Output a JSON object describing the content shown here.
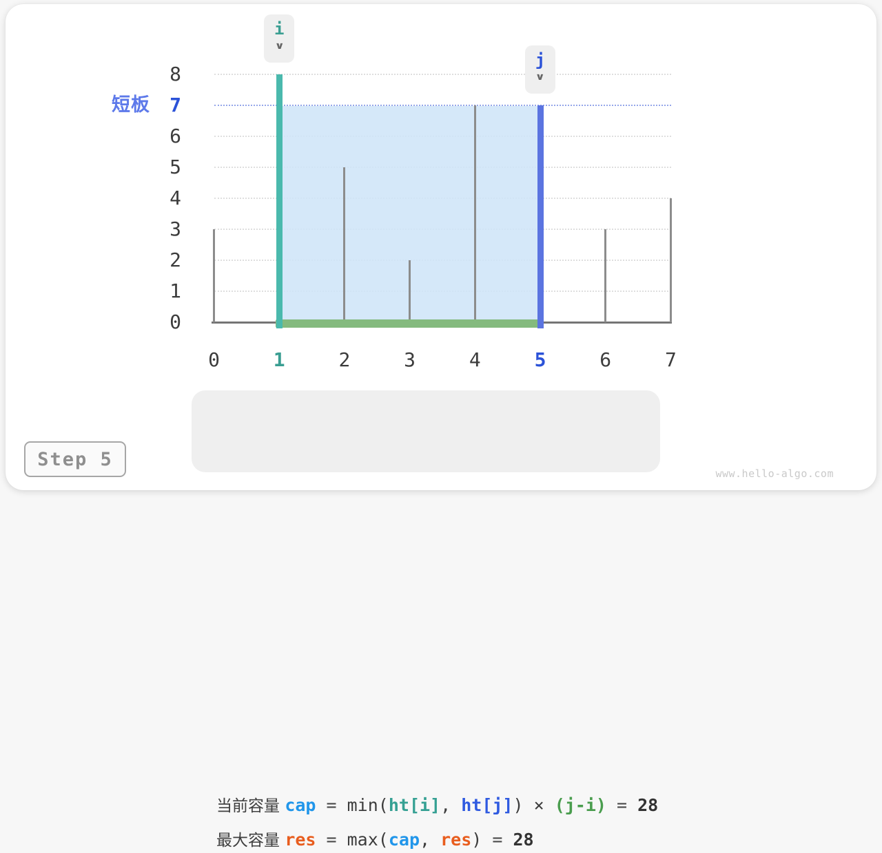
{
  "page": {
    "step_label": "Step 5",
    "watermark": "www.hello-algo.com"
  },
  "chart_data": {
    "type": "bar",
    "title": "",
    "xlabel": "",
    "ylabel": "",
    "categories": [
      0,
      1,
      2,
      3,
      4,
      5,
      6,
      7
    ],
    "values": [
      3,
      8,
      5,
      2,
      7,
      7,
      3,
      4
    ],
    "ylim": [
      0,
      8
    ],
    "y_ticks": [
      0,
      1,
      2,
      3,
      4,
      5,
      6,
      7,
      8
    ],
    "grid": true,
    "legend_position": "none",
    "pointers": {
      "i": {
        "index": 1,
        "label": "i",
        "arrow": "∨"
      },
      "j": {
        "index": 5,
        "label": "j",
        "arrow": "∨"
      }
    },
    "short_board": {
      "label": "短板",
      "value": 7
    },
    "highlight": {
      "fill_between": [
        1,
        5
      ],
      "water_level": 7
    }
  },
  "formula_panel": {
    "lines": [
      {
        "name": "current-capacity-formula",
        "tokens": [
          {
            "text": "当前容量 ",
            "role": "zh"
          },
          {
            "text": "cap",
            "role": "cap"
          },
          {
            "text": " = ",
            "role": "eq"
          },
          {
            "text": "min(",
            "role": "fn"
          },
          {
            "text": "ht[i]",
            "role": "hti"
          },
          {
            "text": ", ",
            "role": "fn"
          },
          {
            "text": "ht[j]",
            "role": "htj"
          },
          {
            "text": ") × ",
            "role": "fn"
          },
          {
            "text": "(j-i)",
            "role": "jmi"
          },
          {
            "text": " = ",
            "role": "eq"
          },
          {
            "text": "28",
            "role": "num"
          }
        ]
      },
      {
        "name": "max-capacity-formula",
        "tokens": [
          {
            "text": "最大容量 ",
            "role": "zh"
          },
          {
            "text": "res",
            "role": "res"
          },
          {
            "text": " = ",
            "role": "eq"
          },
          {
            "text": "max(",
            "role": "fn"
          },
          {
            "text": "cap",
            "role": "cap"
          },
          {
            "text": ", ",
            "role": "fn"
          },
          {
            "text": "res",
            "role": "res"
          },
          {
            "text": ") ",
            "role": "fn"
          },
          {
            "text": "= ",
            "role": "eq"
          },
          {
            "text": "28",
            "role": "num"
          }
        ]
      }
    ]
  },
  "colors": {
    "teal_bar": "#4ab9ad",
    "teal_text": "#3a9e92",
    "blue_bar": "#5b74e0",
    "blue_text": "#2b52d8",
    "shortboard_text": "#5d79ea",
    "water_fill": "rgba(207,229,248,0.88)",
    "green_line": "#84ba7e",
    "gray_bar": "#8c8c8c",
    "axis": "#757575",
    "tick_text": "#3c3c3c",
    "zh": "#3f3f3f",
    "fn": "#3c3c3c",
    "eq": "#4a4a4a",
    "cap": "#2196ea",
    "hti": "#35a093",
    "htj": "#2f5ae0",
    "jmi": "#4a9d4e",
    "res": "#e85d1e",
    "num": "#333333"
  }
}
